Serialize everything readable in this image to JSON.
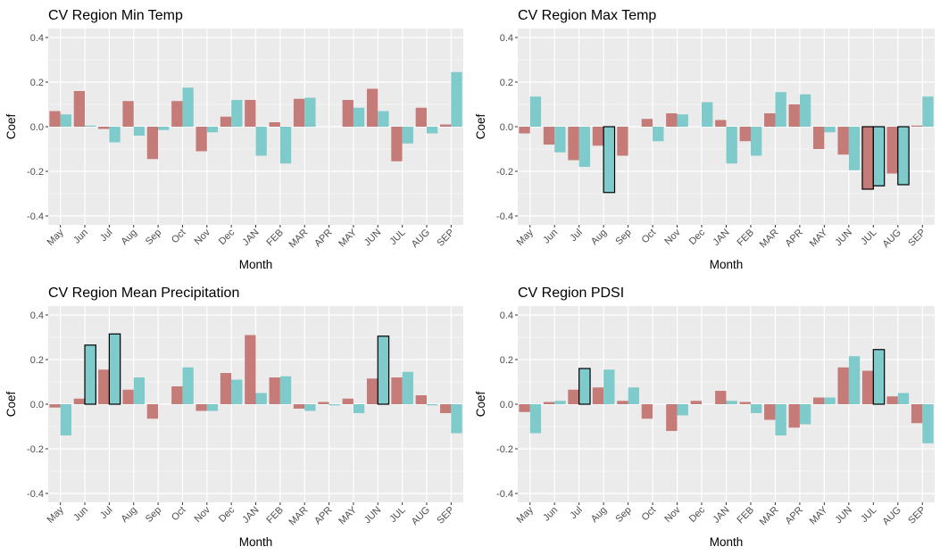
{
  "style": {
    "panel_bg": "#EBEBEB",
    "grid_color": "#FFFFFF",
    "series_colors": [
      "#C57B78",
      "#7FCACB"
    ],
    "highlight_border": "#000000"
  },
  "chart_data": [
    {
      "type": "bar",
      "title": "CV Region Min Temp",
      "xlabel": "Month",
      "ylabel": "Coef",
      "ylim": [
        -0.44,
        0.44
      ],
      "yticks": [
        "-0.4",
        "-0.2",
        "0.0",
        "0.2",
        "0.4"
      ],
      "legend": "none",
      "categories": [
        "May",
        "Jun",
        "Jul",
        "Aug",
        "Sep",
        "Oct",
        "Nov",
        "Dec",
        "JAN",
        "FEB",
        "MAR",
        "APR",
        "MAY",
        "JUN",
        "JUL",
        "AUG",
        "SEP"
      ],
      "series": [
        {
          "values": [
            0.07,
            0.16,
            -0.01,
            0.115,
            -0.145,
            0.115,
            -0.11,
            0.045,
            0.12,
            0.02,
            0.125,
            0.0,
            0.12,
            0.17,
            -0.155,
            0.085,
            0.01
          ],
          "highlighted": [
            false,
            false,
            false,
            false,
            false,
            false,
            false,
            false,
            false,
            false,
            false,
            false,
            false,
            false,
            false,
            false,
            false
          ]
        },
        {
          "values": [
            0.055,
            0.005,
            -0.07,
            -0.04,
            -0.015,
            0.175,
            -0.025,
            0.12,
            -0.13,
            -0.165,
            0.13,
            0.0,
            0.085,
            0.07,
            -0.075,
            -0.03,
            0.245
          ],
          "highlighted": [
            false,
            false,
            false,
            false,
            false,
            false,
            false,
            false,
            false,
            false,
            false,
            false,
            false,
            false,
            false,
            false,
            false
          ]
        }
      ]
    },
    {
      "type": "bar",
      "title": "CV Region Max Temp",
      "xlabel": "Month",
      "ylabel": "Coef",
      "ylim": [
        -0.44,
        0.44
      ],
      "yticks": [
        "-0.4",
        "-0.2",
        "0.0",
        "0.2",
        "0.4"
      ],
      "legend": "none",
      "categories": [
        "May",
        "Jun",
        "Jul",
        "Aug",
        "Sep",
        "Oct",
        "Nov",
        "Dec",
        "JAN",
        "FEB",
        "MAR",
        "APR",
        "MAY",
        "JUN",
        "JUL",
        "AUG",
        "SEP"
      ],
      "series": [
        {
          "values": [
            -0.03,
            -0.08,
            -0.15,
            -0.085,
            -0.13,
            0.035,
            0.06,
            0.0,
            0.03,
            -0.065,
            0.06,
            0.1,
            -0.1,
            -0.125,
            -0.28,
            -0.21,
            0.005
          ],
          "highlighted": [
            false,
            false,
            false,
            false,
            false,
            false,
            false,
            false,
            false,
            false,
            false,
            false,
            false,
            false,
            true,
            false,
            false
          ]
        },
        {
          "values": [
            0.135,
            -0.115,
            -0.18,
            -0.295,
            0.0,
            -0.065,
            0.055,
            0.11,
            -0.165,
            -0.13,
            0.155,
            0.145,
            -0.025,
            -0.195,
            -0.265,
            -0.26,
            0.135
          ],
          "highlighted": [
            false,
            false,
            false,
            true,
            false,
            false,
            false,
            false,
            false,
            false,
            false,
            false,
            false,
            false,
            true,
            true,
            false
          ]
        }
      ]
    },
    {
      "type": "bar",
      "title": "CV Region Mean Precipitation",
      "xlabel": "Month",
      "ylabel": "Coef",
      "ylim": [
        -0.44,
        0.44
      ],
      "yticks": [
        "-0.4",
        "-0.2",
        "0.0",
        "0.2",
        "0.4"
      ],
      "legend": "none",
      "categories": [
        "May",
        "Jun",
        "Jul",
        "Aug",
        "Sep",
        "Oct",
        "Nov",
        "Dec",
        "JAN",
        "FEB",
        "MAR",
        "APR",
        "MAY",
        "JUN",
        "JUL",
        "AUG",
        "SEP"
      ],
      "series": [
        {
          "values": [
            -0.015,
            0.025,
            0.155,
            0.065,
            -0.065,
            0.08,
            -0.03,
            0.14,
            0.31,
            0.12,
            -0.02,
            0.01,
            0.025,
            0.115,
            0.12,
            0.04,
            -0.04
          ],
          "highlighted": [
            false,
            false,
            false,
            false,
            false,
            false,
            false,
            false,
            false,
            false,
            false,
            false,
            false,
            false,
            false,
            false,
            false
          ]
        },
        {
          "values": [
            -0.14,
            0.265,
            0.315,
            0.12,
            0.0,
            0.165,
            -0.03,
            0.11,
            0.05,
            0.125,
            -0.03,
            -0.005,
            -0.04,
            0.305,
            0.145,
            -0.005,
            -0.13
          ],
          "highlighted": [
            false,
            true,
            true,
            false,
            false,
            false,
            false,
            false,
            false,
            false,
            false,
            false,
            false,
            true,
            false,
            false,
            false
          ]
        }
      ]
    },
    {
      "type": "bar",
      "title": "CV Region PDSI",
      "xlabel": "Month",
      "ylabel": "Coef",
      "ylim": [
        -0.44,
        0.44
      ],
      "yticks": [
        "-0.4",
        "-0.2",
        "0.0",
        "0.2",
        "0.4"
      ],
      "legend": "none",
      "categories": [
        "May",
        "Jun",
        "Jul",
        "Aug",
        "Sep",
        "Oct",
        "Nov",
        "Dec",
        "JAN",
        "FEB",
        "MAR",
        "APR",
        "MAY",
        "JUN",
        "JUL",
        "AUG",
        "SEP"
      ],
      "series": [
        {
          "values": [
            -0.035,
            0.01,
            0.065,
            0.075,
            0.015,
            -0.065,
            -0.12,
            0.015,
            0.06,
            0.01,
            -0.07,
            -0.105,
            0.03,
            0.165,
            0.15,
            0.035,
            -0.085
          ],
          "highlighted": [
            false,
            false,
            false,
            false,
            false,
            false,
            false,
            false,
            false,
            false,
            false,
            false,
            false,
            false,
            false,
            false,
            false
          ]
        },
        {
          "values": [
            -0.13,
            0.015,
            0.16,
            0.155,
            0.075,
            0.0,
            -0.05,
            0.0,
            0.015,
            -0.04,
            -0.14,
            -0.09,
            0.03,
            0.215,
            0.245,
            0.05,
            -0.175
          ],
          "highlighted": [
            false,
            false,
            true,
            false,
            false,
            false,
            false,
            false,
            false,
            false,
            false,
            false,
            false,
            false,
            true,
            false,
            false
          ]
        }
      ]
    }
  ]
}
